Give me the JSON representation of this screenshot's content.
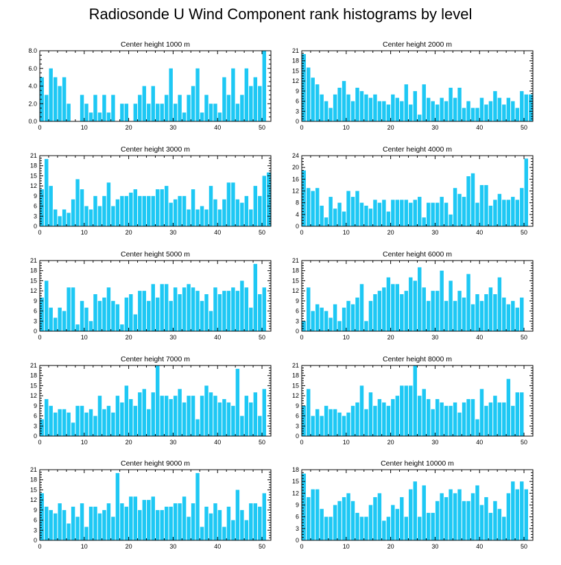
{
  "title": "Radiosonde U Wind Component rank histograms by level",
  "chart_data": [
    {
      "type": "bar",
      "title": "Center height 1000 m",
      "x": [
        0,
        1,
        2,
        3,
        4,
        5,
        6,
        7,
        8,
        9,
        10,
        11,
        12,
        13,
        14,
        15,
        16,
        17,
        18,
        19,
        20,
        21,
        22,
        23,
        24,
        25,
        26,
        27,
        28,
        29,
        30,
        31,
        32,
        33,
        34,
        35,
        36,
        37,
        38,
        39,
        40,
        41,
        42,
        43,
        44,
        45,
        46,
        47,
        48,
        49,
        50,
        51
      ],
      "values": [
        5,
        3,
        6,
        5,
        4,
        5,
        2,
        0,
        0,
        3,
        2,
        1,
        3,
        1,
        3,
        1,
        3,
        0,
        2,
        2,
        0,
        2,
        3,
        4,
        2,
        4,
        2,
        2,
        3,
        6,
        2,
        3,
        1,
        3,
        4,
        6,
        1,
        3,
        2,
        2,
        1,
        5,
        3,
        6,
        2,
        3,
        6,
        4,
        5,
        4,
        8,
        0
      ],
      "xlim": [
        0,
        52
      ],
      "ylim": [
        0,
        8
      ],
      "yticks": [
        0,
        2,
        4,
        6,
        8
      ],
      "ytick_labels": [
        "0.0",
        "2.0",
        "4.0",
        "6.0",
        "8.0"
      ],
      "xticks": [
        0,
        10,
        20,
        30,
        40,
        50
      ],
      "xtick_labels": [
        "0",
        "10",
        "20",
        "30",
        "40",
        "50"
      ]
    },
    {
      "type": "bar",
      "title": "Center height 2000 m",
      "x": [
        0,
        1,
        2,
        3,
        4,
        5,
        6,
        7,
        8,
        9,
        10,
        11,
        12,
        13,
        14,
        15,
        16,
        17,
        18,
        19,
        20,
        21,
        22,
        23,
        24,
        25,
        26,
        27,
        28,
        29,
        30,
        31,
        32,
        33,
        34,
        35,
        36,
        37,
        38,
        39,
        40,
        41,
        42,
        43,
        44,
        45,
        46,
        47,
        48,
        49,
        50,
        51
      ],
      "values": [
        20,
        16,
        13,
        11,
        8,
        6,
        4,
        8,
        10,
        12,
        8,
        6,
        10,
        9,
        8,
        7,
        8,
        6,
        6,
        5,
        8,
        7,
        6,
        11,
        5,
        9,
        2,
        11,
        7,
        6,
        5,
        7,
        6,
        10,
        7,
        10,
        4,
        6,
        4,
        4,
        7,
        5,
        6,
        9,
        7,
        5,
        7,
        6,
        4,
        9,
        8,
        8
      ],
      "xlim": [
        0,
        52
      ],
      "ylim": [
        0,
        21
      ],
      "yticks": [
        0,
        3,
        6,
        9,
        12,
        15,
        18,
        21
      ],
      "ytick_labels": [
        "0",
        "3",
        "6",
        "9",
        "12",
        "15",
        "18",
        "21"
      ],
      "xticks": [
        0,
        10,
        20,
        30,
        40,
        50
      ],
      "xtick_labels": [
        "0",
        "10",
        "20",
        "30",
        "40",
        "50"
      ]
    },
    {
      "type": "bar",
      "title": "Center height 3000 m",
      "x": [
        0,
        1,
        2,
        3,
        4,
        5,
        6,
        7,
        8,
        9,
        10,
        11,
        12,
        13,
        14,
        15,
        16,
        17,
        18,
        19,
        20,
        21,
        22,
        23,
        24,
        25,
        26,
        27,
        28,
        29,
        30,
        31,
        32,
        33,
        34,
        35,
        36,
        37,
        38,
        39,
        40,
        41,
        42,
        43,
        44,
        45,
        46,
        47,
        48,
        49,
        50,
        51
      ],
      "values": [
        11,
        20,
        12,
        5,
        3,
        5,
        4,
        8,
        14,
        11,
        6,
        5,
        9,
        6,
        9,
        13,
        6,
        8,
        9,
        9,
        10,
        11,
        9,
        9,
        9,
        9,
        11,
        11,
        12,
        7,
        8,
        9,
        9,
        5,
        11,
        5,
        6,
        5,
        12,
        8,
        5,
        8,
        13,
        13,
        8,
        7,
        9,
        5,
        12,
        9,
        15,
        16
      ],
      "xlim": [
        0,
        52
      ],
      "ylim": [
        0,
        21
      ],
      "yticks": [
        0,
        3,
        6,
        9,
        12,
        15,
        18,
        21
      ],
      "ytick_labels": [
        "0",
        "3",
        "6",
        "9",
        "12",
        "15",
        "18",
        "21"
      ],
      "xticks": [
        0,
        10,
        20,
        30,
        40,
        50
      ],
      "xtick_labels": [
        "0",
        "10",
        "20",
        "30",
        "40",
        "50"
      ]
    },
    {
      "type": "bar",
      "title": "Center height 4000 m",
      "x": [
        0,
        1,
        2,
        3,
        4,
        5,
        6,
        7,
        8,
        9,
        10,
        11,
        12,
        13,
        14,
        15,
        16,
        17,
        18,
        19,
        20,
        21,
        22,
        23,
        24,
        25,
        26,
        27,
        28,
        29,
        30,
        31,
        32,
        33,
        34,
        35,
        36,
        37,
        38,
        39,
        40,
        41,
        42,
        43,
        44,
        45,
        46,
        47,
        48,
        49,
        50,
        51
      ],
      "values": [
        19,
        13,
        12,
        13,
        7,
        3,
        10,
        6,
        8,
        5,
        12,
        10,
        12,
        8,
        7,
        6,
        9,
        8,
        9,
        5,
        9,
        9,
        9,
        9,
        8,
        9,
        10,
        3,
        8,
        8,
        8,
        10,
        8,
        4,
        13,
        11,
        10,
        17,
        18,
        8,
        14,
        14,
        7,
        9,
        11,
        9,
        9,
        10,
        9,
        13,
        23,
        0
      ],
      "xlim": [
        0,
        52
      ],
      "ylim": [
        0,
        24
      ],
      "yticks": [
        0,
        4,
        8,
        12,
        16,
        20,
        24
      ],
      "ytick_labels": [
        "0",
        "4",
        "8",
        "12",
        "16",
        "20",
        "24"
      ],
      "xticks": [
        0,
        10,
        20,
        30,
        40,
        50
      ],
      "xtick_labels": [
        "0",
        "10",
        "20",
        "30",
        "40",
        "50"
      ]
    },
    {
      "type": "bar",
      "title": "Center height 5000 m",
      "x": [
        0,
        1,
        2,
        3,
        4,
        5,
        6,
        7,
        8,
        9,
        10,
        11,
        12,
        13,
        14,
        15,
        16,
        17,
        18,
        19,
        20,
        21,
        22,
        23,
        24,
        25,
        26,
        27,
        28,
        29,
        30,
        31,
        32,
        33,
        34,
        35,
        36,
        37,
        38,
        39,
        40,
        41,
        42,
        43,
        44,
        45,
        46,
        47,
        48,
        49,
        50,
        51
      ],
      "values": [
        10,
        15,
        7,
        4,
        7,
        6,
        13,
        13,
        2,
        9,
        7,
        3,
        11,
        9,
        10,
        13,
        9,
        8,
        2,
        10,
        11,
        5,
        12,
        12,
        9,
        14,
        10,
        14,
        14,
        9,
        13,
        11,
        13,
        14,
        13,
        12,
        9,
        11,
        6,
        13,
        11,
        12,
        12,
        13,
        12,
        15,
        13,
        7,
        20,
        11,
        13,
        0
      ],
      "xlim": [
        0,
        52
      ],
      "ylim": [
        0,
        21
      ],
      "yticks": [
        0,
        3,
        6,
        9,
        12,
        15,
        18,
        21
      ],
      "ytick_labels": [
        "0",
        "3",
        "6",
        "9",
        "12",
        "15",
        "18",
        "21"
      ],
      "xticks": [
        0,
        10,
        20,
        30,
        40,
        50
      ],
      "xtick_labels": [
        "0",
        "10",
        "20",
        "30",
        "40",
        "50"
      ]
    },
    {
      "type": "bar",
      "title": "Center height 6000 m",
      "x": [
        0,
        1,
        2,
        3,
        4,
        5,
        6,
        7,
        8,
        9,
        10,
        11,
        12,
        13,
        14,
        15,
        16,
        17,
        18,
        19,
        20,
        21,
        22,
        23,
        24,
        25,
        26,
        27,
        28,
        29,
        30,
        31,
        32,
        33,
        34,
        35,
        36,
        37,
        38,
        39,
        40,
        41,
        42,
        43,
        44,
        45,
        46,
        47,
        48,
        49,
        50,
        51
      ],
      "values": [
        3,
        13,
        6,
        8,
        7,
        6,
        4,
        8,
        3,
        7,
        9,
        8,
        10,
        14,
        3,
        9,
        11,
        12,
        13,
        16,
        14,
        14,
        11,
        12,
        16,
        15,
        19,
        13,
        9,
        12,
        12,
        18,
        9,
        15,
        9,
        12,
        10,
        17,
        8,
        11,
        9,
        11,
        13,
        11,
        16,
        10,
        8,
        9,
        7,
        10,
        0,
        0
      ],
      "xlim": [
        0,
        52
      ],
      "ylim": [
        0,
        21
      ],
      "yticks": [
        0,
        3,
        6,
        9,
        12,
        15,
        18,
        21
      ],
      "ytick_labels": [
        "0",
        "3",
        "6",
        "9",
        "12",
        "15",
        "18",
        "21"
      ],
      "xticks": [
        0,
        10,
        20,
        30,
        40,
        50
      ],
      "xtick_labels": [
        "0",
        "10",
        "20",
        "30",
        "40",
        "50"
      ]
    },
    {
      "type": "bar",
      "title": "Center height 7000 m",
      "x": [
        0,
        1,
        2,
        3,
        4,
        5,
        6,
        7,
        8,
        9,
        10,
        11,
        12,
        13,
        14,
        15,
        16,
        17,
        18,
        19,
        20,
        21,
        22,
        23,
        24,
        25,
        26,
        27,
        28,
        29,
        30,
        31,
        32,
        33,
        34,
        35,
        36,
        37,
        38,
        39,
        40,
        41,
        42,
        43,
        44,
        45,
        46,
        47,
        48,
        49,
        50,
        51
      ],
      "values": [
        5,
        11,
        9,
        7,
        8,
        8,
        7,
        4,
        9,
        9,
        7,
        8,
        6,
        12,
        8,
        9,
        7,
        12,
        10,
        15,
        11,
        9,
        13,
        14,
        8,
        13,
        21,
        12,
        12,
        11,
        12,
        14,
        10,
        12,
        12,
        5,
        12,
        15,
        13,
        12,
        10,
        11,
        10,
        9,
        20,
        6,
        12,
        10,
        13,
        6,
        14,
        0
      ],
      "xlim": [
        0,
        52
      ],
      "ylim": [
        0,
        21
      ],
      "yticks": [
        0,
        3,
        6,
        9,
        12,
        15,
        18,
        21
      ],
      "ytick_labels": [
        "0",
        "3",
        "6",
        "9",
        "12",
        "15",
        "18",
        "21"
      ],
      "xticks": [
        0,
        10,
        20,
        30,
        40,
        50
      ],
      "xtick_labels": [
        "0",
        "10",
        "20",
        "30",
        "40",
        "50"
      ]
    },
    {
      "type": "bar",
      "title": "Center height 8000 m",
      "x": [
        0,
        1,
        2,
        3,
        4,
        5,
        6,
        7,
        8,
        9,
        10,
        11,
        12,
        13,
        14,
        15,
        16,
        17,
        18,
        19,
        20,
        21,
        22,
        23,
        24,
        25,
        26,
        27,
        28,
        29,
        30,
        31,
        32,
        33,
        34,
        35,
        36,
        37,
        38,
        39,
        40,
        41,
        42,
        43,
        44,
        45,
        46,
        47,
        48,
        49,
        50,
        51
      ],
      "values": [
        9,
        14,
        6,
        8,
        6,
        9,
        8,
        8,
        7,
        6,
        7,
        9,
        10,
        15,
        8,
        13,
        9,
        11,
        10,
        9,
        11,
        12,
        15,
        15,
        15,
        21,
        12,
        14,
        11,
        8,
        11,
        10,
        9,
        9,
        10,
        7,
        10,
        11,
        11,
        5,
        14,
        9,
        10,
        12,
        10,
        10,
        17,
        9,
        13,
        13,
        0,
        0
      ],
      "xlim": [
        0,
        52
      ],
      "ylim": [
        0,
        21
      ],
      "yticks": [
        0,
        3,
        6,
        9,
        12,
        15,
        18,
        21
      ],
      "ytick_labels": [
        "0",
        "3",
        "6",
        "9",
        "12",
        "15",
        "18",
        "21"
      ],
      "xticks": [
        0,
        10,
        20,
        30,
        40,
        50
      ],
      "xtick_labels": [
        "0",
        "10",
        "20",
        "30",
        "40",
        "50"
      ]
    },
    {
      "type": "bar",
      "title": "Center height 9000 m",
      "x": [
        0,
        1,
        2,
        3,
        4,
        5,
        6,
        7,
        8,
        9,
        10,
        11,
        12,
        13,
        14,
        15,
        16,
        17,
        18,
        19,
        20,
        21,
        22,
        23,
        24,
        25,
        26,
        27,
        28,
        29,
        30,
        31,
        32,
        33,
        34,
        35,
        36,
        37,
        38,
        39,
        40,
        41,
        42,
        43,
        44,
        45,
        46,
        47,
        48,
        49,
        50,
        51
      ],
      "values": [
        14,
        10,
        9,
        8,
        11,
        9,
        5,
        10,
        7,
        11,
        4,
        10,
        10,
        8,
        9,
        11,
        7,
        20,
        11,
        10,
        13,
        13,
        9,
        12,
        12,
        13,
        9,
        9,
        10,
        10,
        11,
        11,
        13,
        7,
        11,
        20,
        4,
        10,
        8,
        11,
        9,
        4,
        10,
        6,
        15,
        9,
        6,
        11,
        11,
        10,
        14,
        0
      ],
      "xlim": [
        0,
        52
      ],
      "ylim": [
        0,
        21
      ],
      "yticks": [
        0,
        3,
        6,
        9,
        12,
        15,
        18,
        21
      ],
      "ytick_labels": [
        "0",
        "3",
        "6",
        "9",
        "12",
        "15",
        "18",
        "21"
      ],
      "xticks": [
        0,
        10,
        20,
        30,
        40,
        50
      ],
      "xtick_labels": [
        "0",
        "10",
        "20",
        "30",
        "40",
        "50"
      ]
    },
    {
      "type": "bar",
      "title": "Center height 10000 m",
      "x": [
        0,
        1,
        2,
        3,
        4,
        5,
        6,
        7,
        8,
        9,
        10,
        11,
        12,
        13,
        14,
        15,
        16,
        17,
        18,
        19,
        20,
        21,
        22,
        23,
        24,
        25,
        26,
        27,
        28,
        29,
        30,
        31,
        32,
        33,
        34,
        35,
        36,
        37,
        38,
        39,
        40,
        41,
        42,
        43,
        44,
        45,
        46,
        47,
        48,
        49,
        50,
        51
      ],
      "values": [
        17,
        11,
        13,
        13,
        8,
        6,
        6,
        9,
        10,
        11,
        12,
        10,
        7,
        6,
        6,
        9,
        11,
        12,
        5,
        6,
        9,
        8,
        11,
        6,
        13,
        15,
        6,
        14,
        7,
        7,
        10,
        12,
        11,
        13,
        12,
        13,
        10,
        10,
        12,
        14,
        9,
        11,
        7,
        10,
        8,
        6,
        12,
        15,
        13,
        15,
        13,
        0
      ],
      "xlim": [
        0,
        52
      ],
      "ylim": [
        0,
        18
      ],
      "yticks": [
        0,
        3,
        6,
        9,
        12,
        15,
        18
      ],
      "ytick_labels": [
        "0",
        "3",
        "6",
        "9",
        "12",
        "15",
        "18"
      ],
      "xticks": [
        0,
        10,
        20,
        30,
        40,
        50
      ],
      "xtick_labels": [
        "0",
        "10",
        "20",
        "30",
        "40",
        "50"
      ]
    }
  ]
}
